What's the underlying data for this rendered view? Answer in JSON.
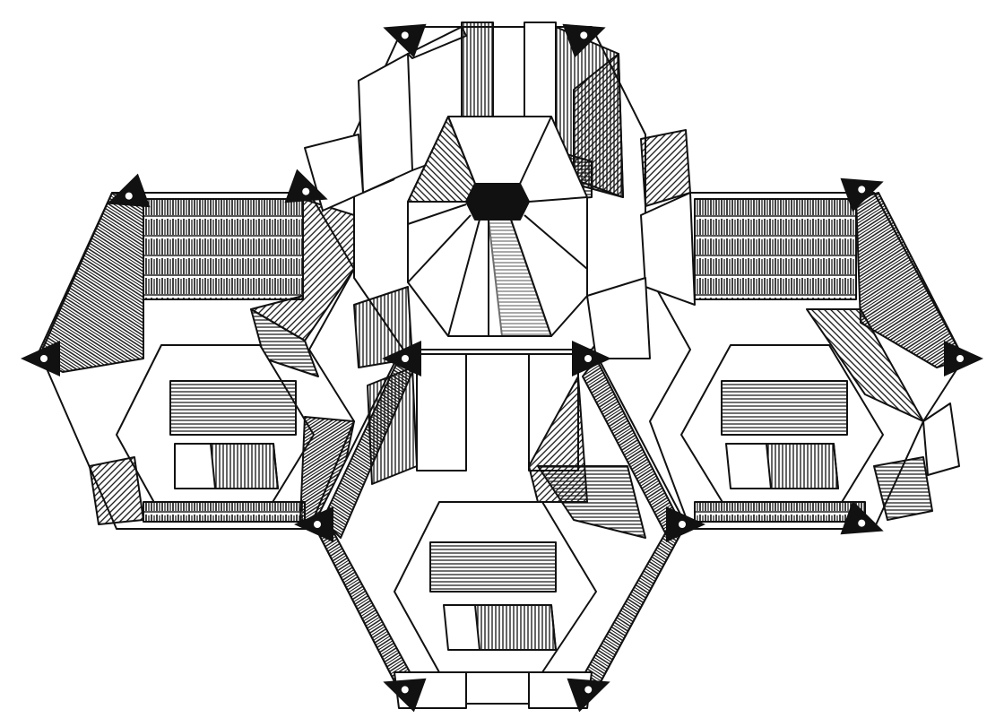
{
  "palette": {
    "ink": "#111111",
    "paper": "#ffffff",
    "hatch": "#1a1a1a"
  },
  "drawing": {
    "subject": "library-floorplan-illustration",
    "hexagonal_rooms": [
      "north-hexagon",
      "west-hexagon",
      "east-hexagon",
      "south-hexagon"
    ],
    "center_feature": "spiral-staircase",
    "marker_icon": "triangle-dot-marker"
  }
}
